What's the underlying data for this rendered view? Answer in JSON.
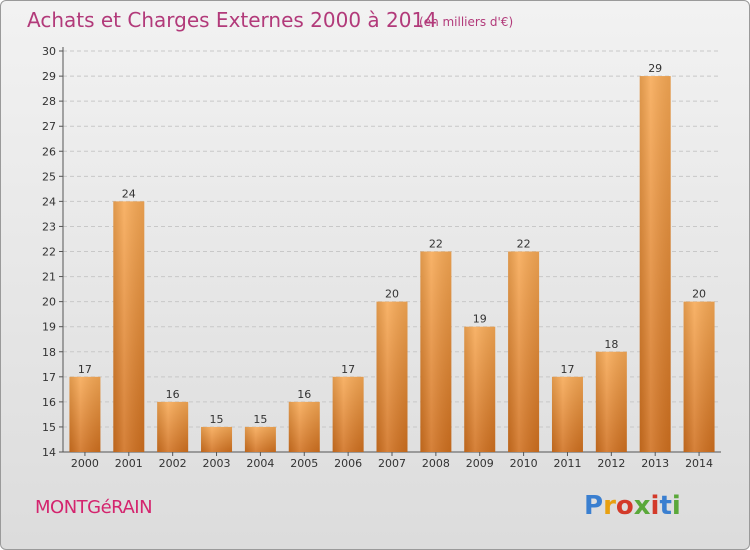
{
  "chart_data": {
    "type": "bar",
    "title": "Achats et Charges Externes 2000 à 2014",
    "subtitle": "(en milliers d'€)",
    "categories": [
      "2000",
      "2001",
      "2002",
      "2003",
      "2004",
      "2005",
      "2006",
      "2007",
      "2008",
      "2009",
      "2010",
      "2011",
      "2012",
      "2013",
      "2014"
    ],
    "values": [
      17,
      24,
      16,
      15,
      15,
      16,
      17,
      20,
      22,
      19,
      22,
      17,
      18,
      29,
      20
    ],
    "xlabel": "",
    "ylabel": "",
    "ylim": [
      14,
      30
    ],
    "yticks": [
      14,
      15,
      16,
      17,
      18,
      19,
      20,
      21,
      22,
      23,
      24,
      25,
      26,
      27,
      28,
      29,
      30
    ],
    "grid": true,
    "bar_color": "#f29a3c",
    "bar_color_dark": "#d26d1c"
  },
  "footer": {
    "city": "MONTGéRAIN",
    "logo": "Proxiti"
  }
}
